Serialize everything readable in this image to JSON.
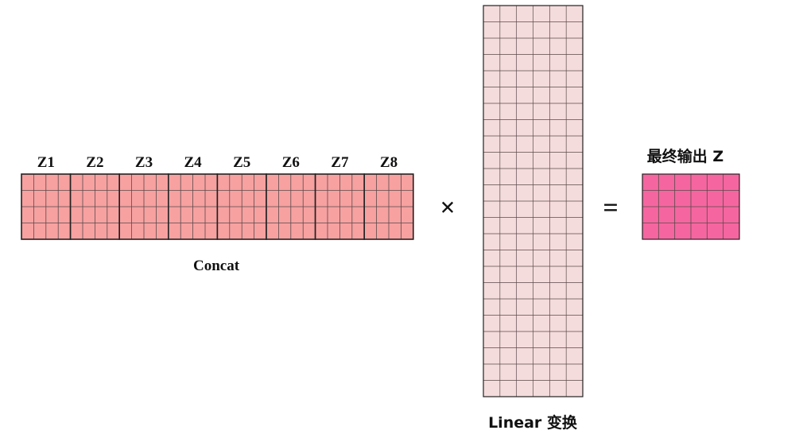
{
  "concat": {
    "blocks": [
      "Z1",
      "Z2",
      "Z3",
      "Z4",
      "Z5",
      "Z6",
      "Z7",
      "Z8"
    ],
    "label": "Concat",
    "color": "#f7a1a1"
  },
  "linear": {
    "label": "Linear 变换",
    "color": "#f5dcdc"
  },
  "output": {
    "label": "最终输出 Z",
    "color": "#f566a0"
  },
  "operators": {
    "multiply": "×",
    "equals": "="
  },
  "colors": {
    "grid_line": "#5a4a4a",
    "block_border": "#222222"
  }
}
